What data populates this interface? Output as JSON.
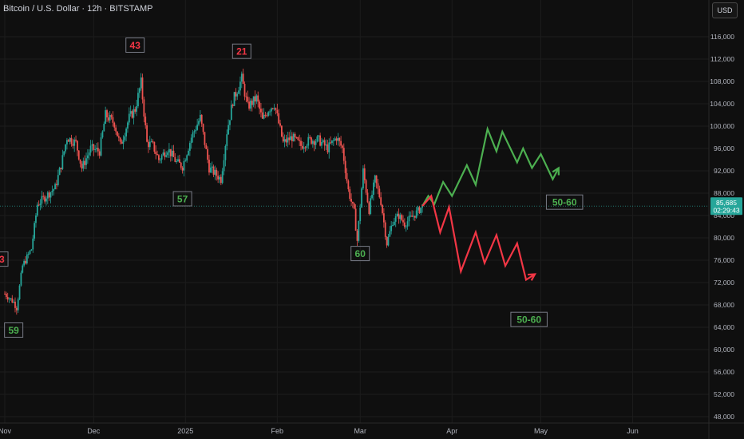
{
  "header": {
    "title": "Bitcoin / U.S. Dollar · 12h · BITSTAMP",
    "currency": "USD"
  },
  "price_label": {
    "value": "85,685",
    "countdown": "02:29:43"
  },
  "colors": {
    "background": "#0f0f0f",
    "up": "#26a69a",
    "down": "#ef5350",
    "projection_up": "#4caf50",
    "projection_down": "#f23645",
    "price_label_bg": "#26a69a",
    "grid": "#1c1c1c"
  },
  "chart_data": {
    "type": "line",
    "title": "Bitcoin / U.S. Dollar · 12h · BITSTAMP",
    "ylim": [
      46000,
      120000
    ],
    "y_ticks": [
      "48,000",
      "52,000",
      "56,000",
      "60,000",
      "64,000",
      "68,000",
      "72,000",
      "76,000",
      "80,000",
      "84,000",
      "88,000",
      "92,000",
      "96,000",
      "100,000",
      "104,000",
      "108,000",
      "112,000",
      "116,000"
    ],
    "x_ticks": [
      "Nov",
      "Dec",
      "2025",
      "Feb",
      "Mar",
      "Apr",
      "May",
      "Jun"
    ],
    "x_tick_dates": [
      "2024-11-01",
      "2024-12-01",
      "2025-01-01",
      "2025-02-01",
      "2025-03-01",
      "2025-04-01",
      "2025-05-01",
      "2025-06-01"
    ],
    "current_price": 85685,
    "price_path": [
      [
        "2024-11-01",
        70000
      ],
      [
        "2024-11-04",
        68500
      ],
      [
        "2024-11-05",
        67500
      ],
      [
        "2024-11-07",
        75000
      ],
      [
        "2024-11-10",
        78000
      ],
      [
        "2024-11-12",
        86000
      ],
      [
        "2024-11-15",
        87500
      ],
      [
        "2024-11-18",
        89000
      ],
      [
        "2024-11-20",
        93000
      ],
      [
        "2024-11-22",
        98000
      ],
      [
        "2024-11-25",
        97000
      ],
      [
        "2024-11-27",
        92500
      ],
      [
        "2024-11-30",
        96000
      ],
      [
        "2024-12-03",
        95500
      ],
      [
        "2024-12-05",
        102000
      ],
      [
        "2024-12-08",
        100500
      ],
      [
        "2024-12-10",
        96500
      ],
      [
        "2024-12-13",
        101500
      ],
      [
        "2024-12-15",
        103000
      ],
      [
        "2024-12-17",
        107800
      ],
      [
        "2024-12-19",
        97000
      ],
      [
        "2024-12-21",
        96500
      ],
      [
        "2024-12-23",
        94000
      ],
      [
        "2024-12-26",
        96000
      ],
      [
        "2024-12-29",
        93500
      ],
      [
        "2024-12-31",
        92800
      ],
      [
        "2025-01-03",
        98000
      ],
      [
        "2025-01-06",
        101500
      ],
      [
        "2025-01-09",
        92500
      ],
      [
        "2025-01-13",
        90500
      ],
      [
        "2025-01-15",
        99000
      ],
      [
        "2025-01-17",
        104500
      ],
      [
        "2025-01-20",
        108500
      ],
      [
        "2025-01-22",
        103500
      ],
      [
        "2025-01-25",
        105000
      ],
      [
        "2025-01-27",
        101000
      ],
      [
        "2025-01-29",
        103000
      ],
      [
        "2025-01-31",
        104000
      ],
      [
        "2025-02-03",
        97000
      ],
      [
        "2025-02-06",
        98000
      ],
      [
        "2025-02-09",
        96500
      ],
      [
        "2025-02-12",
        97500
      ],
      [
        "2025-02-15",
        97500
      ],
      [
        "2025-02-18",
        96000
      ],
      [
        "2025-02-21",
        98000
      ],
      [
        "2025-02-23",
        96000
      ],
      [
        "2025-02-25",
        88500
      ],
      [
        "2025-02-27",
        84500
      ],
      [
        "2025-02-28",
        79500
      ],
      [
        "2025-03-02",
        92000
      ],
      [
        "2025-03-04",
        85000
      ],
      [
        "2025-03-06",
        90500
      ],
      [
        "2025-03-08",
        86500
      ],
      [
        "2025-03-10",
        79000
      ],
      [
        "2025-03-12",
        83000
      ],
      [
        "2025-03-14",
        84000
      ],
      [
        "2025-03-16",
        82500
      ],
      [
        "2025-03-18",
        83500
      ],
      [
        "2025-03-20",
        84500
      ],
      [
        "2025-03-22",
        85685
      ]
    ],
    "projections": [
      {
        "direction": "up",
        "points": [
          [
            "2025-03-22",
            85685
          ],
          [
            "2025-03-24",
            87500
          ],
          [
            "2025-03-26",
            86000
          ],
          [
            "2025-03-29",
            90000
          ],
          [
            "2025-04-01",
            87500
          ],
          [
            "2025-04-06",
            93000
          ],
          [
            "2025-04-09",
            89500
          ],
          [
            "2025-04-13",
            99500
          ],
          [
            "2025-04-16",
            95500
          ],
          [
            "2025-04-18",
            99000
          ],
          [
            "2025-04-23",
            93500
          ],
          [
            "2025-04-25",
            96000
          ],
          [
            "2025-04-28",
            92500
          ],
          [
            "2025-05-01",
            95000
          ],
          [
            "2025-05-05",
            90500
          ],
          [
            "2025-05-07",
            92500
          ]
        ],
        "label": "50-60"
      },
      {
        "direction": "down",
        "points": [
          [
            "2025-03-22",
            85685
          ],
          [
            "2025-03-25",
            87500
          ],
          [
            "2025-03-28",
            81000
          ],
          [
            "2025-03-31",
            85500
          ],
          [
            "2025-04-04",
            74000
          ],
          [
            "2025-04-09",
            81000
          ],
          [
            "2025-04-12",
            75500
          ],
          [
            "2025-04-16",
            80500
          ],
          [
            "2025-04-19",
            75000
          ],
          [
            "2025-04-23",
            79000
          ],
          [
            "2025-04-26",
            72500
          ],
          [
            "2025-04-29",
            73500
          ]
        ],
        "label": "50-60"
      }
    ],
    "annotations": [
      {
        "text": "3",
        "color": "red",
        "date": "2024-10-31",
        "price": 76200
      },
      {
        "text": "59",
        "color": "green",
        "date": "2024-11-04",
        "price": 63500
      },
      {
        "text": "43",
        "color": "red",
        "date": "2024-12-15",
        "price": 114500
      },
      {
        "text": "57",
        "color": "green",
        "date": "2024-12-31",
        "price": 87000
      },
      {
        "text": "21",
        "color": "red",
        "date": "2025-01-20",
        "price": 113400
      },
      {
        "text": "60",
        "color": "green",
        "date": "2025-03-01",
        "price": 77200
      },
      {
        "text": "50-60",
        "color": "green",
        "date": "2025-05-09",
        "price": 86400
      },
      {
        "text": "50-60",
        "color": "green",
        "date": "2025-04-27",
        "price": 65400
      }
    ]
  }
}
